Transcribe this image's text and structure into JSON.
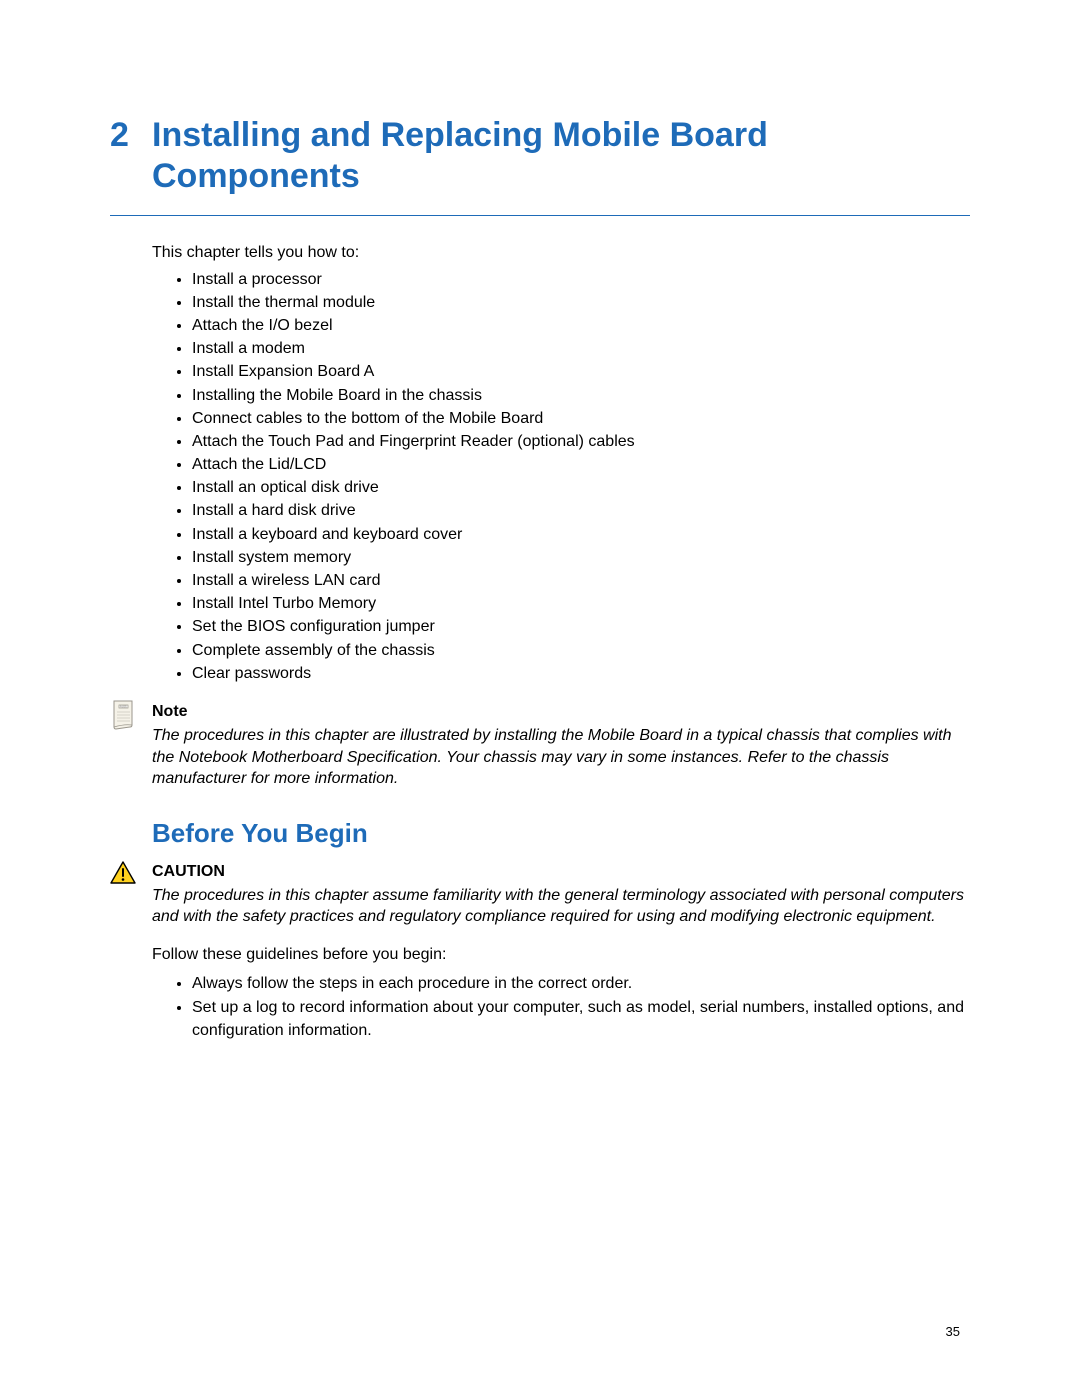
{
  "colors": {
    "heading": "#1e6bb8",
    "rule": "#1e6bb8",
    "text": "#000000",
    "bg": "#ffffff",
    "caution_fill": "#ffd21f",
    "caution_stroke": "#000000",
    "note_fill": "#f5f2e8",
    "note_stroke": "#9a968c"
  },
  "typography": {
    "chapter_title_pt": 34,
    "section_heading_pt": 26,
    "body_pt": 16,
    "pagenum_pt": 13,
    "font_family": "Verdana"
  },
  "chapter": {
    "number": "2",
    "title": "Installing and Replacing Mobile Board Components"
  },
  "intro": "This chapter tells you how to:",
  "intro_bullets": [
    "Install a processor",
    "Install the thermal module",
    "Attach the I/O bezel",
    "Install a modem",
    "Install Expansion Board A",
    "Installing the Mobile Board in the chassis",
    "Connect cables to the bottom of the Mobile Board",
    "Attach the Touch Pad and Fingerprint Reader (optional) cables",
    "Attach the Lid/LCD",
    "Install an optical disk drive",
    "Install a hard disk drive",
    "Install a keyboard and keyboard cover",
    "Install system memory",
    "Install a wireless LAN card",
    "Install Intel Turbo Memory",
    "Set the BIOS configuration jumper",
    "Complete assembly of the chassis",
    "Clear passwords"
  ],
  "note": {
    "label": "Note",
    "body": "The procedures in this chapter are illustrated by installing the Mobile Board in a typical chassis that complies with the Notebook Motherboard Specification.  Your chassis may vary in some instances.  Refer to the chassis manufacturer for more information."
  },
  "section2": {
    "heading": "Before You Begin"
  },
  "caution": {
    "label": "CAUTION",
    "body": "The procedures in this chapter assume familiarity with the general terminology associated with personal computers and with the safety practices and regulatory compliance required for using and modifying electronic equipment."
  },
  "guidelines_intro": "Follow these guidelines before you begin:",
  "guidelines_bullets": [
    "Always follow the steps in each procedure in the correct order.",
    "Set up a log to record information about your computer, such as model, serial numbers, installed options, and configuration information."
  ],
  "page_number": "35"
}
